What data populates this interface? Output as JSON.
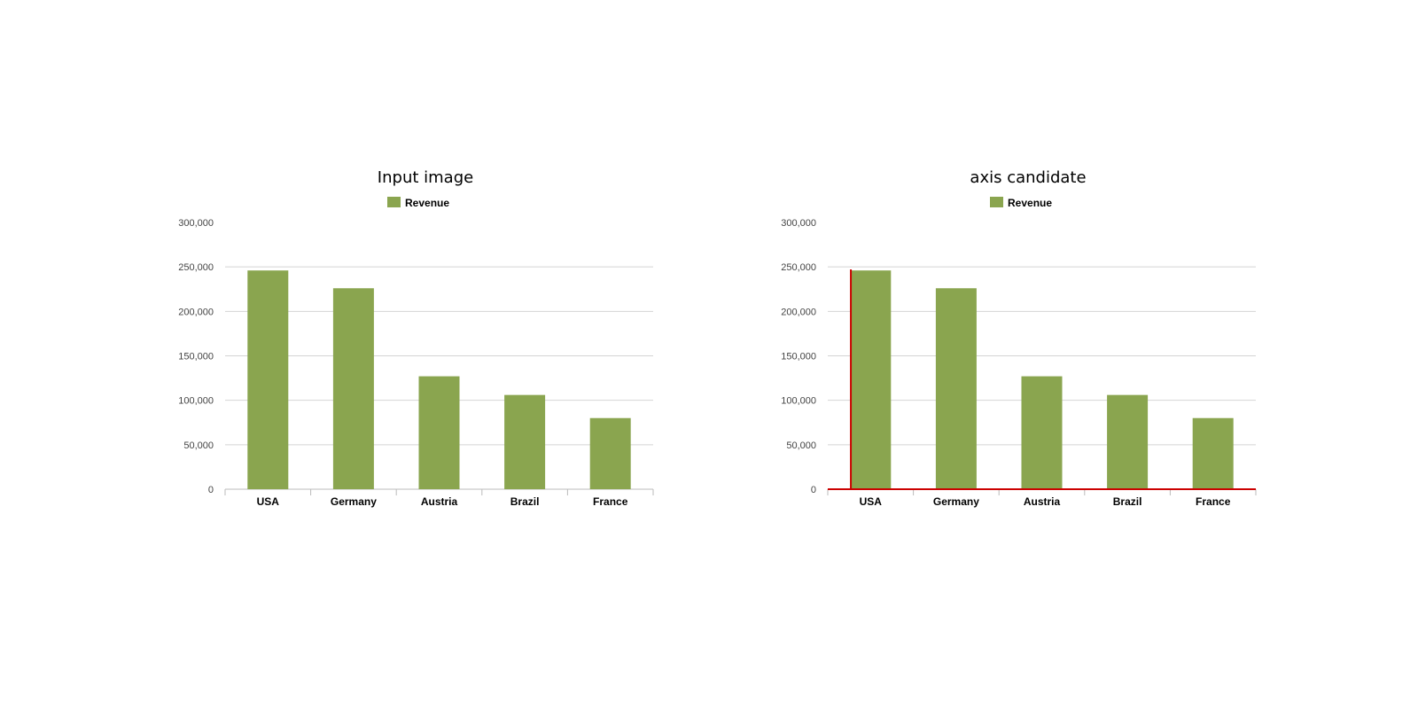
{
  "panels": [
    {
      "title": "Input image",
      "highlight_axes": false
    },
    {
      "title": "axis candidate",
      "highlight_axes": true
    }
  ],
  "colors": {
    "bar": "#8aa54f",
    "grid": "#d4d4d4",
    "axis": "#bbbbbb",
    "highlight": "#cc0000"
  },
  "chart_data": [
    {
      "type": "bar",
      "title": "",
      "categories": [
        "USA",
        "Germany",
        "Austria",
        "Brazil",
        "France"
      ],
      "series": [
        {
          "name": "Revenue",
          "values": [
            246000,
            226000,
            127000,
            106000,
            80000
          ]
        }
      ],
      "ylim": [
        0,
        300000
      ],
      "yticks": [
        0,
        50000,
        100000,
        150000,
        200000,
        250000,
        300000
      ],
      "ytick_labels": [
        "0",
        "50,000",
        "100,000",
        "150,000",
        "200,000",
        "250,000",
        "300,000"
      ],
      "grid": true,
      "legend": "top-center"
    },
    {
      "type": "bar",
      "title": "",
      "categories": [
        "USA",
        "Germany",
        "Austria",
        "Brazil",
        "France"
      ],
      "series": [
        {
          "name": "Revenue",
          "values": [
            246000,
            226000,
            127000,
            106000,
            80000
          ]
        }
      ],
      "ylim": [
        0,
        300000
      ],
      "yticks": [
        0,
        50000,
        100000,
        150000,
        200000,
        250000,
        300000
      ],
      "ytick_labels": [
        "0",
        "50,000",
        "100,000",
        "150,000",
        "200,000",
        "250,000",
        "300,000"
      ],
      "grid": true,
      "legend": "top-center"
    }
  ]
}
